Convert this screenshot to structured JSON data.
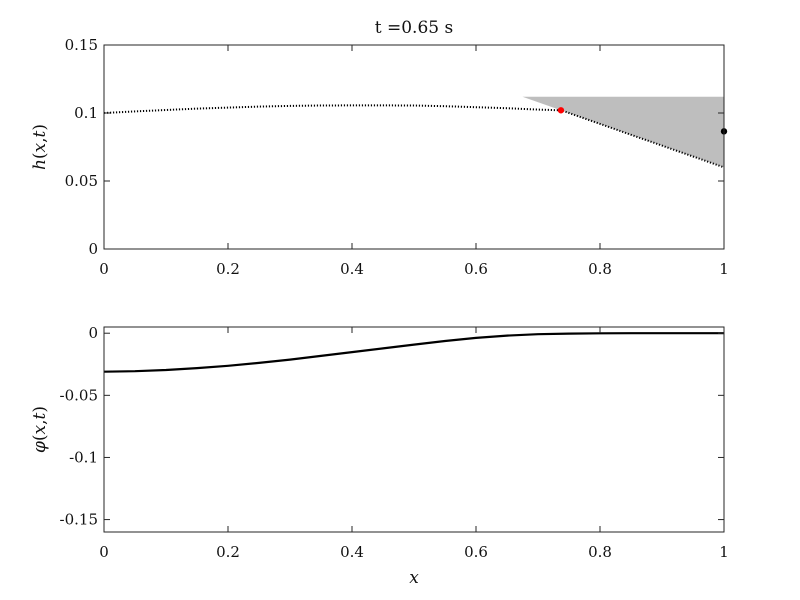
{
  "figure_title": "t =0.65 s",
  "chart_data": [
    {
      "type": "line",
      "title": "t =0.65 s",
      "xlabel": "",
      "ylabel": "h(x,t)",
      "xlim": [
        0,
        1
      ],
      "ylim": [
        0,
        0.15
      ],
      "xticks": [
        "0",
        "0.2",
        "0.4",
        "0.6",
        "0.8",
        "1"
      ],
      "yticks": [
        "0",
        "0.05",
        "0.1",
        "0.15"
      ],
      "grid": false,
      "series": [
        {
          "style": "dotted",
          "color": "#000000",
          "x": [
            0,
            0.05,
            0.1,
            0.15,
            0.2,
            0.25,
            0.3,
            0.35,
            0.4,
            0.45,
            0.5,
            0.55,
            0.6,
            0.65,
            0.7,
            0.737,
            0.75,
            0.8,
            0.85,
            0.9,
            0.95,
            1.0
          ],
          "y": [
            0.1,
            0.1012,
            0.1022,
            0.1032,
            0.104,
            0.1047,
            0.1052,
            0.1055,
            0.1056,
            0.1056,
            0.1055,
            0.105,
            0.1043,
            0.1035,
            0.1025,
            0.102,
            0.1,
            0.092,
            0.084,
            0.076,
            0.068,
            0.06
          ]
        }
      ],
      "shaded_region": {
        "color": "#bebebe",
        "points": [
          [
            0.675,
            0.112
          ],
          [
            1.0,
            0.112
          ],
          [
            1.0,
            0.06
          ],
          [
            0.737,
            0.102
          ]
        ]
      },
      "markers": [
        {
          "x": 0.737,
          "y": 0.102,
          "color": "#ff0000"
        },
        {
          "x": 1.0,
          "y": 0.0865,
          "color": "#000000"
        }
      ]
    },
    {
      "type": "line",
      "title": "",
      "xlabel": "x",
      "ylabel": "φ(x,t)",
      "xlim": [
        0,
        1
      ],
      "ylim": [
        -0.16,
        0.005
      ],
      "xticks": [
        "0",
        "0.2",
        "0.4",
        "0.6",
        "0.8",
        "1"
      ],
      "yticks": [
        "0",
        "-0.05",
        "-0.1",
        "-0.15"
      ],
      "grid": false,
      "series": [
        {
          "style": "solid",
          "color": "#000000",
          "x": [
            0,
            0.05,
            0.1,
            0.15,
            0.2,
            0.25,
            0.3,
            0.35,
            0.4,
            0.45,
            0.5,
            0.55,
            0.6,
            0.65,
            0.7,
            0.75,
            0.8,
            0.85,
            0.9,
            0.95,
            1.0
          ],
          "y": [
            -0.031,
            -0.0306,
            -0.0296,
            -0.0281,
            -0.0262,
            -0.0239,
            -0.0212,
            -0.0183,
            -0.0152,
            -0.0122,
            -0.0092,
            -0.0063,
            -0.0038,
            -0.0019,
            -0.0008,
            -0.0003,
            -0.0001,
            0.0,
            0.0,
            0.0,
            0.0
          ]
        }
      ]
    }
  ]
}
